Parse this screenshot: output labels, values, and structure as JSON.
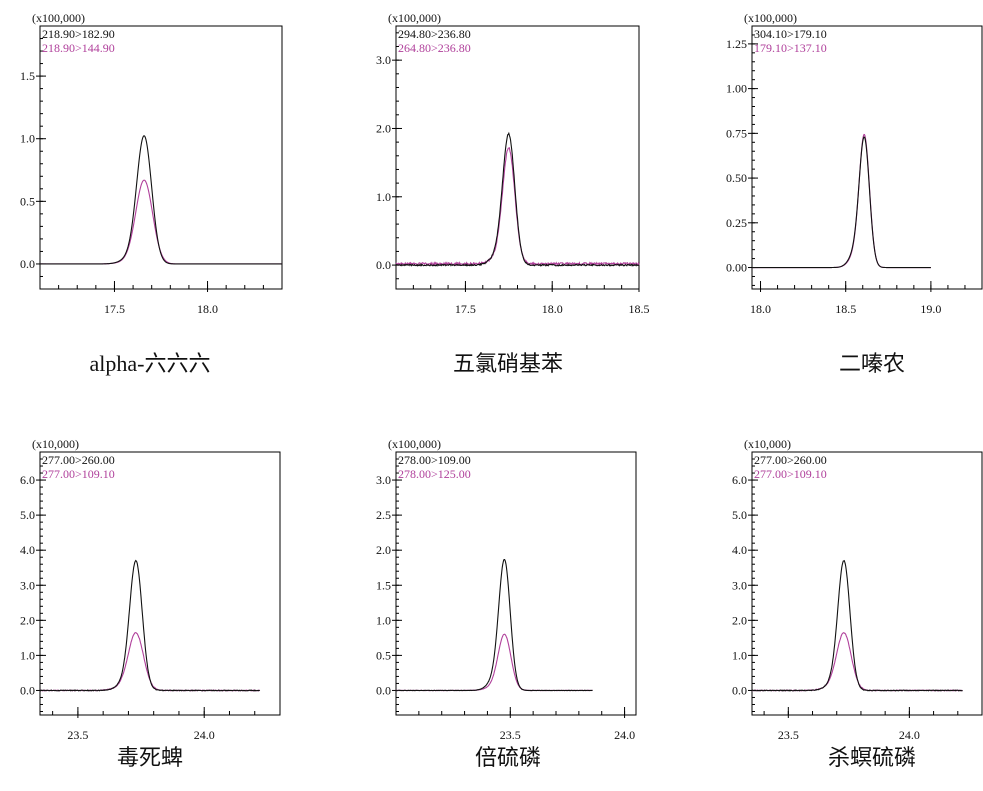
{
  "chart_data": [
    {
      "type": "line",
      "title": "alpha-六六六",
      "multiplier": "(x100,000)",
      "xlim": [
        17.1,
        18.4
      ],
      "ylim": [
        -0.2,
        1.9
      ],
      "xticks": [
        17.5,
        18.0
      ],
      "xtick_labels": [
        "17.5",
        "18.0"
      ],
      "yticks": [
        0.0,
        0.5,
        1.0,
        1.5
      ],
      "ytick_labels": [
        "0.0",
        "0.5",
        "1.0",
        "1.5"
      ],
      "data_range": [
        17.1,
        18.4
      ],
      "series": [
        {
          "name": "218.90>182.90",
          "color": "#111111",
          "peak_x": 17.66,
          "peak_y": 1.0,
          "width": 0.04,
          "shoulder": 0.05,
          "baseline": 0.0,
          "noise": 0.0
        },
        {
          "name": "218.90>144.90",
          "color": "#b0409b",
          "peak_x": 17.66,
          "peak_y": 0.66,
          "width": 0.045,
          "shoulder": 0.03,
          "baseline": 0.0,
          "noise": 0.0
        }
      ]
    },
    {
      "type": "line",
      "title": "五氯硝基苯",
      "multiplier": "(x100,000)",
      "xlim": [
        17.1,
        18.5
      ],
      "ylim": [
        -0.35,
        3.5
      ],
      "xticks": [
        17.5,
        18.0,
        18.5
      ],
      "xtick_labels": [
        "17.5",
        "18.0",
        "18.5"
      ],
      "yticks": [
        0.0,
        1.0,
        2.0,
        3.0
      ],
      "ytick_labels": [
        "0.0",
        "1.0",
        "2.0",
        "3.0"
      ],
      "data_range": [
        17.1,
        18.5
      ],
      "series": [
        {
          "name": "294.80>236.80",
          "color": "#111111",
          "peak_x": 17.75,
          "peak_y": 1.85,
          "width": 0.035,
          "shoulder": 0.08,
          "baseline": 0.0,
          "noise": 0.02
        },
        {
          "name": "264.80>236.80",
          "color": "#b0409b",
          "peak_x": 17.75,
          "peak_y": 1.65,
          "width": 0.035,
          "shoulder": 0.06,
          "baseline": 0.02,
          "noise": 0.03
        }
      ]
    },
    {
      "type": "line",
      "title": "二嗪农",
      "multiplier": "(x100,000)",
      "xlim": [
        17.95,
        19.3
      ],
      "ylim": [
        -0.12,
        1.35
      ],
      "xticks": [
        18.0,
        18.5,
        19.0
      ],
      "xtick_labels": [
        "18.0",
        "18.5",
        "19.0"
      ],
      "yticks": [
        0.0,
        0.25,
        0.5,
        0.75,
        1.0,
        1.25
      ],
      "ytick_labels": [
        "0.00",
        "0.25",
        "0.50",
        "0.75",
        "1.00",
        "1.25"
      ],
      "data_range": [
        17.95,
        19.0
      ],
      "series": [
        {
          "name": "304.10>179.10",
          "color": "#111111",
          "peak_x": 18.61,
          "peak_y": 0.69,
          "width": 0.03,
          "shoulder": 0.12,
          "baseline": 0.0,
          "noise": 0.0
        },
        {
          "name": "179.10>137.10",
          "color": "#b0409b",
          "peak_x": 18.61,
          "peak_y": 0.71,
          "width": 0.03,
          "shoulder": 0.1,
          "baseline": 0.0,
          "noise": 0.0
        }
      ]
    },
    {
      "type": "line",
      "title": "毒死蜱",
      "multiplier": "(x10,000)",
      "xlim": [
        23.35,
        24.3
      ],
      "ylim": [
        -0.7,
        6.8
      ],
      "xticks": [
        23.5,
        24.0
      ],
      "xtick_labels": [
        "23.5",
        "24.0"
      ],
      "yticks": [
        0.0,
        1.0,
        2.0,
        3.0,
        4.0,
        5.0,
        6.0
      ],
      "ytick_labels": [
        "0.0",
        "1.0",
        "2.0",
        "3.0",
        "4.0",
        "5.0",
        "6.0"
      ],
      "data_range": [
        23.35,
        24.22
      ],
      "series": [
        {
          "name": "277.00>260.00",
          "color": "#111111",
          "peak_x": 23.73,
          "peak_y": 3.6,
          "width": 0.025,
          "shoulder": 0.06,
          "baseline": 0.0,
          "noise": 0.02
        },
        {
          "name": "277.00>109.10",
          "color": "#b0409b",
          "peak_x": 23.73,
          "peak_y": 1.6,
          "width": 0.03,
          "shoulder": 0.06,
          "baseline": 0.0,
          "noise": 0.02
        }
      ]
    },
    {
      "type": "line",
      "title": "倍硫磷",
      "multiplier": "(x100,000)",
      "xlim": [
        23.0,
        24.05
      ],
      "ylim": [
        -0.35,
        3.4
      ],
      "xticks": [
        23.5,
        24.0
      ],
      "xtick_labels": [
        "23.5",
        "24.0"
      ],
      "yticks": [
        0.0,
        0.5,
        1.0,
        1.5,
        2.0,
        2.5,
        3.0
      ],
      "ytick_labels": [
        "0.0",
        "0.5",
        "1.0",
        "1.5",
        "2.0",
        "2.5",
        "3.0"
      ],
      "data_range": [
        23.0,
        23.86
      ],
      "series": [
        {
          "name": "278.00>109.00",
          "color": "#111111",
          "peak_x": 23.475,
          "peak_y": 1.8,
          "width": 0.025,
          "shoulder": 0.08,
          "baseline": 0.0,
          "noise": 0.005
        },
        {
          "name": "278.00>125.00",
          "color": "#b0409b",
          "peak_x": 23.475,
          "peak_y": 0.78,
          "width": 0.028,
          "shoulder": 0.06,
          "baseline": 0.0,
          "noise": 0.005
        }
      ]
    },
    {
      "type": "line",
      "title": "杀螟硫磷",
      "multiplier": "(x10,000)",
      "xlim": [
        23.35,
        24.3
      ],
      "ylim": [
        -0.7,
        6.8
      ],
      "xticks": [
        23.5,
        24.0
      ],
      "xtick_labels": [
        "23.5",
        "24.0"
      ],
      "yticks": [
        0.0,
        1.0,
        2.0,
        3.0,
        4.0,
        5.0,
        6.0
      ],
      "ytick_labels": [
        "0.0",
        "1.0",
        "2.0",
        "3.0",
        "4.0",
        "5.0",
        "6.0"
      ],
      "data_range": [
        23.35,
        24.22
      ],
      "series": [
        {
          "name": "277.00>260.00",
          "color": "#111111",
          "peak_x": 23.73,
          "peak_y": 3.6,
          "width": 0.025,
          "shoulder": 0.06,
          "baseline": 0.0,
          "noise": 0.02
        },
        {
          "name": "277.00>109.10",
          "color": "#b0409b",
          "peak_x": 23.73,
          "peak_y": 1.6,
          "width": 0.03,
          "shoulder": 0.06,
          "baseline": 0.0,
          "noise": 0.02
        }
      ]
    }
  ]
}
